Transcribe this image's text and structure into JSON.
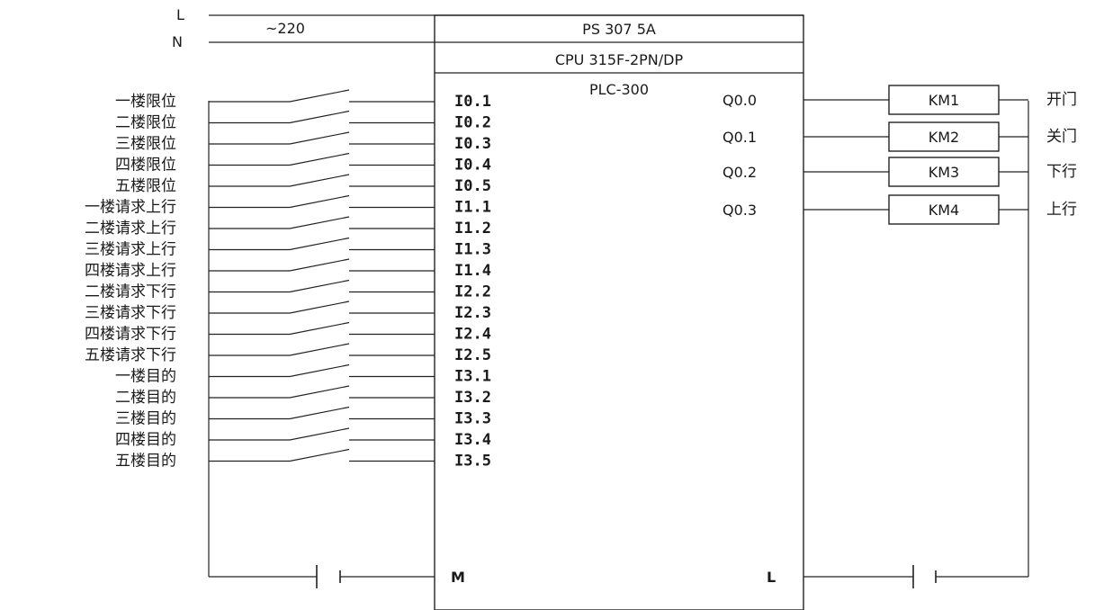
{
  "supply": {
    "line_l": "L",
    "line_n": "N",
    "voltage": "~220"
  },
  "plc": {
    "power_supply": "PS 307 5A",
    "cpu": "CPU 315F-2PN/DP",
    "model": "PLC-300",
    "common_m": "M",
    "common_l": "L"
  },
  "inputs": [
    {
      "label": "一楼限位",
      "address": "I0.1"
    },
    {
      "label": "二楼限位",
      "address": "I0.2"
    },
    {
      "label": "三楼限位",
      "address": "I0.3"
    },
    {
      "label": "四楼限位",
      "address": "I0.4"
    },
    {
      "label": "五楼限位",
      "address": "I0.5"
    },
    {
      "label": "一楼请求上行",
      "address": "I1.1"
    },
    {
      "label": "二楼请求上行",
      "address": "I1.2"
    },
    {
      "label": "三楼请求上行",
      "address": "I1.3"
    },
    {
      "label": "四楼请求上行",
      "address": "I1.4"
    },
    {
      "label": "二楼请求下行",
      "address": "I2.2"
    },
    {
      "label": "三楼请求下行",
      "address": "I2.3"
    },
    {
      "label": "四楼请求下行",
      "address": "I2.4"
    },
    {
      "label": "五楼请求下行",
      "address": "I2.5"
    },
    {
      "label": "一楼目的",
      "address": "I3.1"
    },
    {
      "label": "二楼目的",
      "address": "I3.2"
    },
    {
      "label": "三楼目的",
      "address": "I3.3"
    },
    {
      "label": "四楼目的",
      "address": "I3.4"
    },
    {
      "label": "五楼目的",
      "address": "I3.5"
    }
  ],
  "outputs": [
    {
      "address": "Q0.0",
      "coil": "KM1",
      "function": "开门"
    },
    {
      "address": "Q0.1",
      "coil": "KM2",
      "function": "关门"
    },
    {
      "address": "Q0.2",
      "coil": "KM3",
      "function": "下行"
    },
    {
      "address": "Q0.3",
      "coil": "KM4",
      "function": "上行"
    }
  ]
}
